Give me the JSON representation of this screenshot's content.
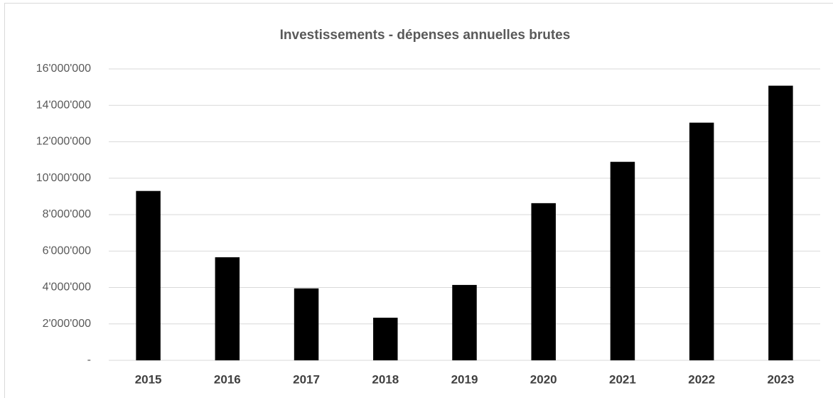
{
  "chart_data": {
    "type": "bar",
    "title": "Investissements - dépenses annuelles brutes",
    "categories": [
      "2015",
      "2016",
      "2017",
      "2018",
      "2019",
      "2020",
      "2021",
      "2022",
      "2023"
    ],
    "values": [
      9300000,
      5660000,
      3950000,
      2340000,
      4140000,
      8630000,
      10900000,
      13050000,
      15080000
    ],
    "color": "#000000",
    "ylim": [
      0,
      16000000
    ],
    "yticks": [
      {
        "value": 0,
        "label": "-"
      },
      {
        "value": 2000000,
        "label": "2'000'000"
      },
      {
        "value": 4000000,
        "label": "4'000'000"
      },
      {
        "value": 6000000,
        "label": "6'000'000"
      },
      {
        "value": 8000000,
        "label": "8'000'000"
      },
      {
        "value": 10000000,
        "label": "10'000'000"
      },
      {
        "value": 12000000,
        "label": "12'000'000"
      },
      {
        "value": 14000000,
        "label": "14'000'000"
      },
      {
        "value": 16000000,
        "label": "16'000'000"
      }
    ],
    "grid": true
  }
}
